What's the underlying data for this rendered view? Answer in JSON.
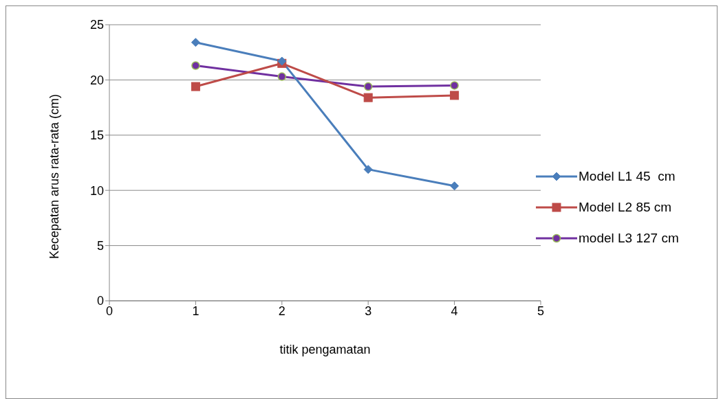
{
  "chart_data": {
    "type": "line",
    "xlabel": "titik pengamatan",
    "ylabel": "Kecepatan arus rata-rata (cm)",
    "xlim": [
      0,
      5
    ],
    "xticks": [
      0,
      1,
      2,
      3,
      4,
      5
    ],
    "ylim": [
      0,
      25
    ],
    "yticks": [
      0,
      5,
      10,
      15,
      20,
      25
    ],
    "grid": "y",
    "legend": "right",
    "line_style": "solid",
    "series": [
      {
        "name": "Model L1 45  cm",
        "color": "#4a7ebb",
        "marker": "diamond",
        "x": [
          1,
          2,
          3,
          4
        ],
        "values": [
          23.4,
          21.7,
          11.9,
          10.4
        ]
      },
      {
        "name": "Model L2 85 cm",
        "color": "#be4b48",
        "marker": "square",
        "x": [
          1,
          2,
          3,
          4
        ],
        "values": [
          19.4,
          21.5,
          18.4,
          18.6
        ]
      },
      {
        "name": "model L3 127 cm",
        "color": "#7030a0",
        "marker": "circle",
        "x": [
          1,
          2,
          3,
          4
        ],
        "values": [
          21.3,
          20.3,
          19.4,
          19.5
        ]
      }
    ]
  }
}
